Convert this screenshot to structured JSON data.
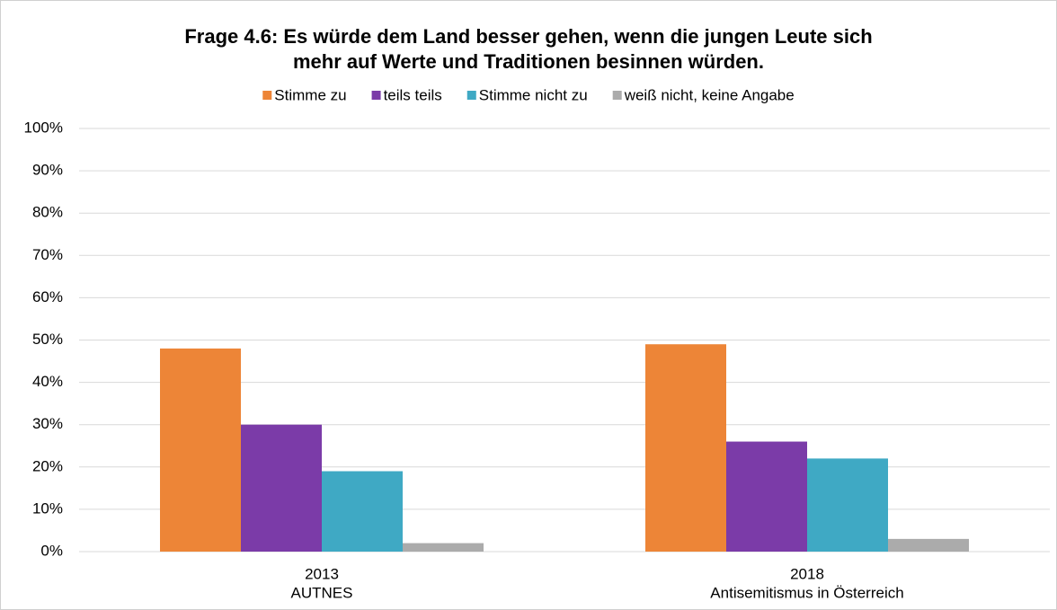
{
  "chart_data": {
    "type": "bar",
    "title": [
      "Frage 4.6: Es würde dem Land besser gehen, wenn die jungen Leute sich",
      "mehr auf Werte und Traditionen besinnen würden."
    ],
    "categories": [
      [
        "2013",
        "AUTNES"
      ],
      [
        "2018",
        "Antisemitismus in Österreich"
      ]
    ],
    "series": [
      {
        "name": "Stimme zu",
        "color": "#ED8537",
        "values": [
          48,
          49
        ]
      },
      {
        "name": "teils teils",
        "color": "#7B3BA8",
        "values": [
          30,
          26
        ]
      },
      {
        "name": "Stimme nicht zu",
        "color": "#3FA9C4",
        "values": [
          19,
          22
        ]
      },
      {
        "name": "weiß nicht, keine Angabe",
        "color": "#ABABAB",
        "values": [
          2,
          3
        ]
      }
    ],
    "ylim": [
      0,
      100
    ],
    "yticks": [
      {
        "value": 0,
        "label": "0%"
      },
      {
        "value": 10,
        "label": "10%"
      },
      {
        "value": 20,
        "label": "20%"
      },
      {
        "value": 30,
        "label": "30%"
      },
      {
        "value": 40,
        "label": "40%"
      },
      {
        "value": 50,
        "label": "50%"
      },
      {
        "value": 60,
        "label": "60%"
      },
      {
        "value": 70,
        "label": "70%"
      },
      {
        "value": 80,
        "label": "80%"
      },
      {
        "value": 90,
        "label": "90%"
      },
      {
        "value": 100,
        "label": "100%"
      }
    ],
    "grid": true,
    "legend": "top"
  }
}
